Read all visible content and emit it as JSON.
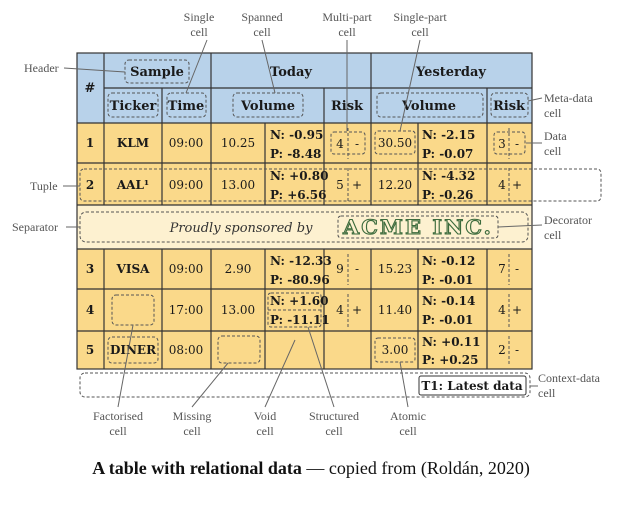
{
  "header": {
    "hash": "#",
    "sample": "Sample",
    "today": "Today",
    "yesterday": "Yesterday",
    "ticker": "Ticker",
    "time": "Time",
    "volume_today": "Volume",
    "risk_today": "Risk",
    "volume_yesterday": "Volume",
    "risk_yesterday": "Risk"
  },
  "rows": [
    {
      "num": "1",
      "ticker": "KLM",
      "time": "09:00",
      "tvol": "10.25",
      "tn": "N: -0.95",
      "tp": "P: -8.48",
      "trisk": "4",
      "tsign": "-",
      "yvol": "30.50",
      "yn": "N: -2.15",
      "yp": "P: -0.07",
      "yrisk": "3",
      "ysign": "-"
    },
    {
      "num": "2",
      "ticker": "AAL¹",
      "time": "09:00",
      "tvol": "13.00",
      "tn": "N: +0.80",
      "tp": "P: +6.56",
      "trisk": "5",
      "tsign": "+",
      "yvol": "12.20",
      "yn": "N: -4.32",
      "yp": "P: -0.26",
      "yrisk": "4",
      "ysign": "+"
    },
    {
      "num": "3",
      "ticker": "VISA",
      "time": "09:00",
      "tvol": "2.90",
      "tn": "N: -12.33",
      "tp": "P: -80.96",
      "trisk": "9",
      "tsign": "-",
      "yvol": "15.23",
      "yn": "N: -0.12",
      "yp": "P: -0.01",
      "yrisk": "7",
      "ysign": "-"
    },
    {
      "num": "4",
      "ticker": "",
      "time": "17:00",
      "tvol": "13.00",
      "tn": "N: +1.60",
      "tp": "P: -11.11",
      "trisk": "4",
      "tsign": "+",
      "yvol": "11.40",
      "yn": "N: -0.14",
      "yp": "P: -0.01",
      "yrisk": "4",
      "ysign": "+"
    },
    {
      "num": "5",
      "ticker": "DINER",
      "time": "08:00",
      "tvol": "",
      "tn": "",
      "tp": "",
      "trisk": "",
      "tsign": "",
      "yvol": "3.00",
      "yn": "N: +0.11",
      "yp": "P: +0.25",
      "yrisk": "2",
      "ysign": "-"
    }
  ],
  "separator": {
    "text": "Proudly sponsored by",
    "logo": "ACME INC."
  },
  "context_cell": "T1: Latest data",
  "annotations": {
    "single_cell": "Single cell",
    "spanned_cell": "Spanned cell",
    "multipart_cell": "Multi-part cell",
    "singlepart_cell": "Single-part cell",
    "header": "Header",
    "metadata_cell": "Meta-data cell",
    "data_cell": "Data cell",
    "tuple": "Tuple",
    "separator": "Separator",
    "decorator_cell": "Decorator cell",
    "contextdata_cell": "Context-data cell",
    "factorised_cell": "Factorised cell",
    "missing_cell": "Missing cell",
    "void_cell": "Void cell",
    "structured_cell": "Structured cell",
    "atomic_cell": "Atomic cell"
  },
  "caption": {
    "bold": "A table with relational data",
    "rest": " — copied from (Roldán, 2020)"
  },
  "colors": {
    "header_fill": "#b8d2ea",
    "data_fill": "#fad98a",
    "separator_fill": "#fdf1d0",
    "grid": "#333333"
  }
}
